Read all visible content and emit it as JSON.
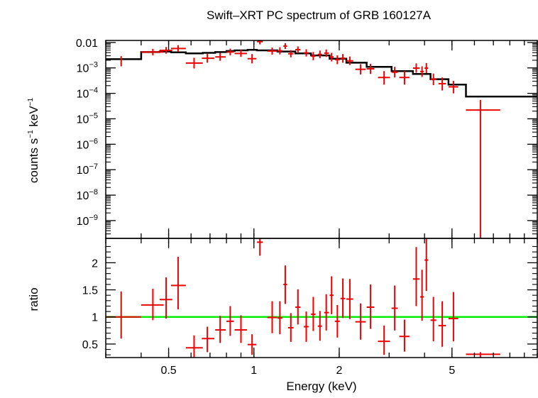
{
  "title": "Swift–XRT PC spectrum of GRB 160127A",
  "xlabel": "Energy (keV)",
  "top_ylabel_main": "counts s",
  "top_ylabel_exp1": "−1",
  "top_ylabel_mid": " keV",
  "top_ylabel_exp2": "−1",
  "bottom_ylabel": "ratio",
  "colors": {
    "data": "#ee0000",
    "model": "#000000",
    "unity": "#00ee00",
    "axes": "#000000"
  },
  "chart_data": [
    {
      "type": "scatter",
      "panel": "spectrum",
      "xscale": "log",
      "yscale": "log",
      "xlim": [
        0.3,
        10
      ],
      "ylim": [
        2e-10,
        0.012
      ],
      "x_ticks": [
        {
          "value": 0.5,
          "label": "0.5"
        },
        {
          "value": 1,
          "label": "1"
        },
        {
          "value": 2,
          "label": "2"
        },
        {
          "value": 5,
          "label": "5"
        }
      ],
      "y_ticks": [
        {
          "value": 0.01,
          "label": "0.01",
          "base": "",
          "exp": ""
        },
        {
          "value": 0.001,
          "label": "",
          "base": "10",
          "exp": "−3"
        },
        {
          "value": 0.0001,
          "label": "",
          "base": "10",
          "exp": "−4"
        },
        {
          "value": 1e-05,
          "label": "",
          "base": "10",
          "exp": "−5"
        },
        {
          "value": 1e-06,
          "label": "",
          "base": "10",
          "exp": "−6"
        },
        {
          "value": 1e-07,
          "label": "",
          "base": "10",
          "exp": "−7"
        },
        {
          "value": 1e-08,
          "label": "",
          "base": "10",
          "exp": "−8"
        },
        {
          "value": 1e-09,
          "label": "",
          "base": "10",
          "exp": "−9"
        }
      ],
      "data_points": [
        {
          "x": 0.34,
          "xlo": 0.34,
          "xhi": 0.34,
          "y": 0.00185,
          "ylo": 0.00115,
          "yhi": 0.0029
        },
        {
          "x": 0.44,
          "xlo": 0.4,
          "xhi": 0.48,
          "y": 0.0042,
          "ylo": 0.0031,
          "yhi": 0.0056
        },
        {
          "x": 0.49,
          "xlo": 0.465,
          "xhi": 0.515,
          "y": 0.0049,
          "ylo": 0.0036,
          "yhi": 0.0066
        },
        {
          "x": 0.54,
          "xlo": 0.51,
          "xhi": 0.575,
          "y": 0.0058,
          "ylo": 0.0043,
          "yhi": 0.0078
        },
        {
          "x": 0.615,
          "xlo": 0.575,
          "xhi": 0.66,
          "y": 0.00155,
          "ylo": 0.00095,
          "yhi": 0.0025
        },
        {
          "x": 0.685,
          "xlo": 0.655,
          "xhi": 0.725,
          "y": 0.0024,
          "ylo": 0.0016,
          "yhi": 0.0036
        },
        {
          "x": 0.76,
          "xlo": 0.73,
          "xhi": 0.795,
          "y": 0.0027,
          "ylo": 0.0019,
          "yhi": 0.0039
        },
        {
          "x": 0.825,
          "xlo": 0.8,
          "xhi": 0.85,
          "y": 0.0042,
          "ylo": 0.0031,
          "yhi": 0.0057
        },
        {
          "x": 0.9,
          "xlo": 0.855,
          "xhi": 0.945,
          "y": 0.0037,
          "ylo": 0.0027,
          "yhi": 0.0051
        },
        {
          "x": 0.985,
          "xlo": 0.95,
          "xhi": 1.02,
          "y": 0.0023,
          "ylo": 0.0015,
          "yhi": 0.0035
        },
        {
          "x": 1.05,
          "xlo": 1.025,
          "xhi": 1.075,
          "y": 0.0108,
          "ylo": 0.0084,
          "yhi": 0.0125
        },
        {
          "x": 1.16,
          "xlo": 1.115,
          "xhi": 1.205,
          "y": 0.0046,
          "ylo": 0.0033,
          "yhi": 0.0063
        },
        {
          "x": 1.235,
          "xlo": 1.21,
          "xhi": 1.26,
          "y": 0.0047,
          "ylo": 0.0034,
          "yhi": 0.0065
        },
        {
          "x": 1.29,
          "xlo": 1.27,
          "xhi": 1.31,
          "y": 0.0072,
          "ylo": 0.0055,
          "yhi": 0.0093
        },
        {
          "x": 1.35,
          "xlo": 1.32,
          "xhi": 1.38,
          "y": 0.0036,
          "ylo": 0.0026,
          "yhi": 0.005
        },
        {
          "x": 1.43,
          "xlo": 1.4,
          "xhi": 1.46,
          "y": 0.0052,
          "ylo": 0.0038,
          "yhi": 0.007
        },
        {
          "x": 1.53,
          "xlo": 1.5,
          "xhi": 1.56,
          "y": 0.0039,
          "ylo": 0.0028,
          "yhi": 0.0054
        },
        {
          "x": 1.62,
          "xlo": 1.59,
          "xhi": 1.65,
          "y": 0.0029,
          "ylo": 0.002,
          "yhi": 0.0042
        },
        {
          "x": 1.71,
          "xlo": 1.68,
          "xhi": 1.74,
          "y": 0.0034,
          "ylo": 0.0024,
          "yhi": 0.0048
        },
        {
          "x": 1.8,
          "xlo": 1.77,
          "xhi": 1.84,
          "y": 0.0038,
          "ylo": 0.0027,
          "yhi": 0.0053
        },
        {
          "x": 1.88,
          "xlo": 1.85,
          "xhi": 1.91,
          "y": 0.0027,
          "ylo": 0.0018,
          "yhi": 0.0039
        },
        {
          "x": 1.97,
          "xlo": 1.93,
          "xhi": 2.01,
          "y": 0.0021,
          "ylo": 0.0014,
          "yhi": 0.0031
        },
        {
          "x": 2.06,
          "xlo": 2.02,
          "xhi": 2.1,
          "y": 0.0024,
          "ylo": 0.0016,
          "yhi": 0.0035
        },
        {
          "x": 2.18,
          "xlo": 2.12,
          "xhi": 2.24,
          "y": 0.0019,
          "ylo": 0.0013,
          "yhi": 0.0028
        },
        {
          "x": 2.38,
          "xlo": 2.28,
          "xhi": 2.48,
          "y": 0.00088,
          "ylo": 0.00055,
          "yhi": 0.0014
        },
        {
          "x": 2.58,
          "xlo": 2.5,
          "xhi": 2.66,
          "y": 0.00092,
          "ylo": 0.00058,
          "yhi": 0.00145
        },
        {
          "x": 2.88,
          "xlo": 2.74,
          "xhi": 3.02,
          "y": 0.00042,
          "ylo": 0.00022,
          "yhi": 0.00075
        },
        {
          "x": 3.14,
          "xlo": 3.06,
          "xhi": 3.22,
          "y": 0.00068,
          "ylo": 0.00042,
          "yhi": 0.0011
        },
        {
          "x": 3.4,
          "xlo": 3.26,
          "xhi": 3.54,
          "y": 0.00042,
          "ylo": 0.00022,
          "yhi": 0.00075
        },
        {
          "x": 3.74,
          "xlo": 3.64,
          "xhi": 3.84,
          "y": 0.00098,
          "ylo": 0.00065,
          "yhi": 0.0015
        },
        {
          "x": 3.92,
          "xlo": 3.86,
          "xhi": 3.98,
          "y": 0.00072,
          "ylo": 0.00044,
          "yhi": 0.00115
        },
        {
          "x": 4.06,
          "xlo": 4.0,
          "xhi": 4.12,
          "y": 0.00098,
          "ylo": 0.00062,
          "yhi": 0.00155
        },
        {
          "x": 4.3,
          "xlo": 4.2,
          "xhi": 4.4,
          "y": 0.00036,
          "ylo": 0.00021,
          "yhi": 0.0006
        },
        {
          "x": 4.62,
          "xlo": 4.48,
          "xhi": 4.76,
          "y": 0.00024,
          "ylo": 0.00013,
          "yhi": 0.00042
        },
        {
          "x": 5.06,
          "xlo": 4.86,
          "xhi": 5.26,
          "y": 0.00018,
          "ylo": 0.0001,
          "yhi": 0.00031
        },
        {
          "x": 6.3,
          "xlo": 5.6,
          "xhi": 7.4,
          "y": 2.2e-05,
          "ylo": 2e-10,
          "yhi": 5.5e-05
        }
      ],
      "model_steps": [
        {
          "xlo": 0.3,
          "xhi": 0.4,
          "y": 0.0022
        },
        {
          "xlo": 0.4,
          "xhi": 0.465,
          "y": 0.0042
        },
        {
          "xlo": 0.465,
          "xhi": 0.51,
          "y": 0.0044
        },
        {
          "xlo": 0.51,
          "xhi": 0.575,
          "y": 0.0041
        },
        {
          "xlo": 0.575,
          "xhi": 0.66,
          "y": 0.0037
        },
        {
          "xlo": 0.66,
          "xhi": 0.73,
          "y": 0.0039
        },
        {
          "xlo": 0.73,
          "xhi": 0.8,
          "y": 0.0042
        },
        {
          "xlo": 0.8,
          "xhi": 0.855,
          "y": 0.0046
        },
        {
          "xlo": 0.855,
          "xhi": 0.95,
          "y": 0.0049
        },
        {
          "xlo": 0.95,
          "xhi": 1.025,
          "y": 0.0051
        },
        {
          "xlo": 1.025,
          "xhi": 1.21,
          "y": 0.0049
        },
        {
          "xlo": 1.21,
          "xhi": 1.4,
          "y": 0.0044
        },
        {
          "xlo": 1.4,
          "xhi": 1.59,
          "y": 0.0037
        },
        {
          "xlo": 1.59,
          "xhi": 1.85,
          "y": 0.0031
        },
        {
          "xlo": 1.85,
          "xhi": 2.12,
          "y": 0.0023
        },
        {
          "xlo": 2.12,
          "xhi": 2.5,
          "y": 0.0016
        },
        {
          "xlo": 2.5,
          "xhi": 3.06,
          "y": 0.0011
        },
        {
          "xlo": 3.06,
          "xhi": 3.64,
          "y": 0.00075
        },
        {
          "xlo": 3.64,
          "xhi": 4.2,
          "y": 0.00058
        },
        {
          "xlo": 4.2,
          "xhi": 4.86,
          "y": 0.00036
        },
        {
          "xlo": 4.86,
          "xhi": 5.6,
          "y": 0.00022
        },
        {
          "xlo": 5.6,
          "xhi": 10.0,
          "y": 7.5e-05
        }
      ]
    },
    {
      "type": "scatter",
      "panel": "ratio",
      "xscale": "log",
      "yscale": "linear",
      "xlim": [
        0.3,
        10
      ],
      "ylim": [
        0.25,
        2.45
      ],
      "reference_line": 1,
      "x_ticks": [
        {
          "value": 0.5,
          "label": "0.5"
        },
        {
          "value": 1,
          "label": "1"
        },
        {
          "value": 2,
          "label": "2"
        },
        {
          "value": 5,
          "label": "5"
        }
      ],
      "y_ticks": [
        {
          "value": 0.5,
          "label": "0.5"
        },
        {
          "value": 1,
          "label": "1"
        },
        {
          "value": 1.5,
          "label": "1.5"
        },
        {
          "value": 2,
          "label": "2"
        }
      ],
      "data_points": [
        {
          "x": 0.34,
          "xlo": 0.3,
          "xhi": 0.4,
          "y": 1.0,
          "ylo": 0.6,
          "yhi": 1.47
        },
        {
          "x": 0.44,
          "xlo": 0.4,
          "xhi": 0.48,
          "y": 1.22,
          "ylo": 0.94,
          "yhi": 1.52
        },
        {
          "x": 0.49,
          "xlo": 0.465,
          "xhi": 0.515,
          "y": 1.32,
          "ylo": 0.97,
          "yhi": 1.73
        },
        {
          "x": 0.54,
          "xlo": 0.51,
          "xhi": 0.575,
          "y": 1.58,
          "ylo": 1.14,
          "yhi": 2.11
        },
        {
          "x": 0.615,
          "xlo": 0.575,
          "xhi": 0.66,
          "y": 0.43,
          "ylo": 0.25,
          "yhi": 0.66
        },
        {
          "x": 0.685,
          "xlo": 0.655,
          "xhi": 0.725,
          "y": 0.6,
          "ylo": 0.35,
          "yhi": 0.82
        },
        {
          "x": 0.76,
          "xlo": 0.73,
          "xhi": 0.795,
          "y": 0.76,
          "ylo": 0.52,
          "yhi": 1.02
        },
        {
          "x": 0.825,
          "xlo": 0.8,
          "xhi": 0.85,
          "y": 0.92,
          "ylo": 0.65,
          "yhi": 1.2
        },
        {
          "x": 0.9,
          "xlo": 0.855,
          "xhi": 0.945,
          "y": 0.76,
          "ylo": 0.52,
          "yhi": 1.03
        },
        {
          "x": 0.985,
          "xlo": 0.95,
          "xhi": 1.02,
          "y": 0.49,
          "ylo": 0.3,
          "yhi": 0.68
        },
        {
          "x": 1.05,
          "xlo": 1.025,
          "xhi": 1.075,
          "y": 2.38,
          "ylo": 2.13,
          "yhi": 2.45
        },
        {
          "x": 1.16,
          "xlo": 1.115,
          "xhi": 1.205,
          "y": 0.99,
          "ylo": 0.7,
          "yhi": 1.29
        },
        {
          "x": 1.235,
          "xlo": 1.21,
          "xhi": 1.26,
          "y": 0.98,
          "ylo": 0.68,
          "yhi": 1.29
        },
        {
          "x": 1.29,
          "xlo": 1.27,
          "xhi": 1.31,
          "y": 1.6,
          "ylo": 1.24,
          "yhi": 1.95
        },
        {
          "x": 1.35,
          "xlo": 1.32,
          "xhi": 1.38,
          "y": 0.8,
          "ylo": 0.54,
          "yhi": 1.07
        },
        {
          "x": 1.43,
          "xlo": 1.4,
          "xhi": 1.46,
          "y": 1.18,
          "ylo": 0.86,
          "yhi": 1.51
        },
        {
          "x": 1.53,
          "xlo": 1.5,
          "xhi": 1.56,
          "y": 0.82,
          "ylo": 0.54,
          "yhi": 1.1
        },
        {
          "x": 1.62,
          "xlo": 1.59,
          "xhi": 1.65,
          "y": 1.05,
          "ylo": 0.74,
          "yhi": 1.37
        },
        {
          "x": 1.71,
          "xlo": 1.68,
          "xhi": 1.74,
          "y": 0.83,
          "ylo": 0.56,
          "yhi": 1.11
        },
        {
          "x": 1.8,
          "xlo": 1.77,
          "xhi": 1.84,
          "y": 1.08,
          "ylo": 0.75,
          "yhi": 1.42
        },
        {
          "x": 1.88,
          "xlo": 1.85,
          "xhi": 1.91,
          "y": 1.4,
          "ylo": 1.05,
          "yhi": 1.75
        },
        {
          "x": 1.97,
          "xlo": 1.93,
          "xhi": 2.01,
          "y": 0.92,
          "ylo": 0.62,
          "yhi": 1.22
        },
        {
          "x": 2.06,
          "xlo": 2.02,
          "xhi": 2.1,
          "y": 1.34,
          "ylo": 0.98,
          "yhi": 1.71
        },
        {
          "x": 2.18,
          "xlo": 2.12,
          "xhi": 2.24,
          "y": 1.33,
          "ylo": 0.96,
          "yhi": 1.7
        },
        {
          "x": 2.38,
          "xlo": 2.28,
          "xhi": 2.48,
          "y": 0.91,
          "ylo": 0.58,
          "yhi": 1.25
        },
        {
          "x": 2.58,
          "xlo": 2.5,
          "xhi": 2.66,
          "y": 1.18,
          "ylo": 0.78,
          "yhi": 1.6
        },
        {
          "x": 2.88,
          "xlo": 2.74,
          "xhi": 3.02,
          "y": 0.55,
          "ylo": 0.3,
          "yhi": 0.84
        },
        {
          "x": 3.14,
          "xlo": 3.06,
          "xhi": 3.22,
          "y": 1.16,
          "ylo": 0.75,
          "yhi": 1.58
        },
        {
          "x": 3.4,
          "xlo": 3.26,
          "xhi": 3.54,
          "y": 0.64,
          "ylo": 0.36,
          "yhi": 0.95
        },
        {
          "x": 3.74,
          "xlo": 3.64,
          "xhi": 3.84,
          "y": 1.7,
          "ylo": 1.2,
          "yhi": 2.29
        },
        {
          "x": 3.92,
          "xlo": 3.86,
          "xhi": 3.98,
          "y": 1.37,
          "ylo": 0.93,
          "yhi": 1.87
        },
        {
          "x": 4.06,
          "xlo": 4.0,
          "xhi": 4.12,
          "y": 2.05,
          "ylo": 1.48,
          "yhi": 2.45
        },
        {
          "x": 4.3,
          "xlo": 4.2,
          "xhi": 4.4,
          "y": 0.94,
          "ylo": 0.55,
          "yhi": 1.37
        },
        {
          "x": 4.62,
          "xlo": 4.48,
          "xhi": 4.76,
          "y": 0.84,
          "ylo": 0.45,
          "yhi": 1.29
        },
        {
          "x": 5.06,
          "xlo": 4.86,
          "xhi": 5.26,
          "y": 0.97,
          "ylo": 0.55,
          "yhi": 1.46
        },
        {
          "x": 6.3,
          "xlo": 5.6,
          "xhi": 7.4,
          "y": 0.31,
          "ylo": 0.25,
          "yhi": 0.35
        }
      ]
    }
  ]
}
